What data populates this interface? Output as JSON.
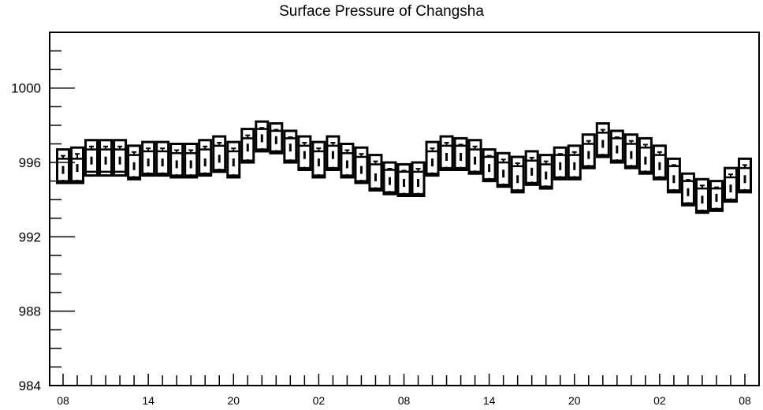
{
  "chart_data": {
    "type": "box",
    "title": "Surface Pressure of Changsha",
    "xlabel": "",
    "ylabel": "",
    "ylim": [
      984,
      1003
    ],
    "y_ticks": [
      "984",
      "988",
      "992",
      "996",
      "1000"
    ],
    "x_ticks": [
      "08",
      "14",
      "20",
      "02",
      "08",
      "14",
      "20",
      "02",
      "08"
    ],
    "grid": false,
    "boxes": [
      {
        "x": 0,
        "low": 994.9,
        "q1": 995.0,
        "median": 995.6,
        "q3": 996.2,
        "high": 996.7
      },
      {
        "x": 1,
        "low": 994.9,
        "q1": 995.0,
        "median": 995.7,
        "q3": 996.2,
        "high": 996.8
      },
      {
        "x": 2,
        "low": 995.3,
        "q1": 995.5,
        "median": 996.1,
        "q3": 996.7,
        "high": 997.2
      },
      {
        "x": 3,
        "low": 995.3,
        "q1": 995.5,
        "median": 996.1,
        "q3": 996.7,
        "high": 997.2
      },
      {
        "x": 4,
        "low": 995.3,
        "q1": 995.5,
        "median": 996.1,
        "q3": 996.7,
        "high": 997.2
      },
      {
        "x": 5,
        "low": 995.1,
        "q1": 995.2,
        "median": 995.8,
        "q3": 996.4,
        "high": 996.9
      },
      {
        "x": 6,
        "low": 995.3,
        "q1": 995.4,
        "median": 996.0,
        "q3": 996.6,
        "high": 997.1
      },
      {
        "x": 7,
        "low": 995.3,
        "q1": 995.4,
        "median": 996.0,
        "q3": 996.6,
        "high": 997.1
      },
      {
        "x": 8,
        "low": 995.2,
        "q1": 995.3,
        "median": 995.9,
        "q3": 996.5,
        "high": 997.0
      },
      {
        "x": 9,
        "low": 995.2,
        "q1": 995.3,
        "median": 995.9,
        "q3": 996.5,
        "high": 997.0
      },
      {
        "x": 10,
        "low": 995.3,
        "q1": 995.4,
        "median": 996.0,
        "q3": 996.7,
        "high": 997.2
      },
      {
        "x": 11,
        "low": 995.5,
        "q1": 995.6,
        "median": 996.2,
        "q3": 996.9,
        "high": 997.4
      },
      {
        "x": 12,
        "low": 995.2,
        "q1": 995.3,
        "median": 996.0,
        "q3": 996.6,
        "high": 997.1
      },
      {
        "x": 13,
        "low": 996.0,
        "q1": 996.1,
        "median": 996.8,
        "q3": 997.3,
        "high": 997.8
      },
      {
        "x": 14,
        "low": 996.6,
        "q1": 996.7,
        "median": 997.3,
        "q3": 997.8,
        "high": 998.2
      },
      {
        "x": 15,
        "low": 996.5,
        "q1": 996.6,
        "median": 997.2,
        "q3": 997.7,
        "high": 998.1
      },
      {
        "x": 16,
        "low": 996.0,
        "q1": 996.1,
        "median": 996.8,
        "q3": 997.3,
        "high": 997.7
      },
      {
        "x": 17,
        "low": 995.6,
        "q1": 995.7,
        "median": 996.4,
        "q3": 996.9,
        "high": 997.4
      },
      {
        "x": 18,
        "low": 995.2,
        "q1": 995.3,
        "median": 996.0,
        "q3": 996.6,
        "high": 997.1
      },
      {
        "x": 19,
        "low": 995.6,
        "q1": 995.7,
        "median": 996.4,
        "q3": 996.9,
        "high": 997.4
      },
      {
        "x": 20,
        "low": 995.2,
        "q1": 995.3,
        "median": 995.9,
        "q3": 996.5,
        "high": 997.0
      },
      {
        "x": 21,
        "low": 994.9,
        "q1": 995.0,
        "median": 995.6,
        "q3": 996.3,
        "high": 996.8
      },
      {
        "x": 22,
        "low": 994.5,
        "q1": 994.6,
        "median": 995.2,
        "q3": 995.9,
        "high": 996.4
      },
      {
        "x": 23,
        "low": 994.3,
        "q1": 994.4,
        "median": 995.0,
        "q3": 995.6,
        "high": 996.0
      },
      {
        "x": 24,
        "low": 994.2,
        "q1": 994.3,
        "median": 994.9,
        "q3": 995.5,
        "high": 995.9
      },
      {
        "x": 25,
        "low": 994.2,
        "q1": 994.3,
        "median": 994.9,
        "q3": 995.5,
        "high": 996.0
      },
      {
        "x": 26,
        "low": 995.3,
        "q1": 995.4,
        "median": 996.0,
        "q3": 996.6,
        "high": 997.1
      },
      {
        "x": 27,
        "low": 995.6,
        "q1": 995.7,
        "median": 996.3,
        "q3": 996.9,
        "high": 997.4
      },
      {
        "x": 28,
        "low": 995.6,
        "q1": 995.7,
        "median": 996.3,
        "q3": 996.9,
        "high": 997.3
      },
      {
        "x": 29,
        "low": 995.4,
        "q1": 995.5,
        "median": 996.1,
        "q3": 996.7,
        "high": 997.2
      },
      {
        "x": 30,
        "low": 995.0,
        "q1": 995.1,
        "median": 995.7,
        "q3": 996.3,
        "high": 996.7
      },
      {
        "x": 31,
        "low": 994.7,
        "q1": 994.8,
        "median": 995.4,
        "q3": 996.0,
        "high": 996.5
      },
      {
        "x": 32,
        "low": 994.4,
        "q1": 994.5,
        "median": 995.1,
        "q3": 995.8,
        "high": 996.3
      },
      {
        "x": 33,
        "low": 994.8,
        "q1": 994.9,
        "median": 995.5,
        "q3": 996.1,
        "high": 996.6
      },
      {
        "x": 34,
        "low": 994.6,
        "q1": 994.7,
        "median": 995.3,
        "q3": 995.9,
        "high": 996.4
      },
      {
        "x": 35,
        "low": 995.1,
        "q1": 995.2,
        "median": 995.8,
        "q3": 996.4,
        "high": 996.8
      },
      {
        "x": 36,
        "low": 995.1,
        "q1": 995.2,
        "median": 995.8,
        "q3": 996.4,
        "high": 996.9
      },
      {
        "x": 37,
        "low": 995.7,
        "q1": 995.8,
        "median": 996.4,
        "q3": 997.0,
        "high": 997.5
      },
      {
        "x": 38,
        "low": 996.3,
        "q1": 996.4,
        "median": 997.0,
        "q3": 997.6,
        "high": 998.1
      },
      {
        "x": 39,
        "low": 996.0,
        "q1": 996.1,
        "median": 996.7,
        "q3": 997.3,
        "high": 997.7
      },
      {
        "x": 40,
        "low": 995.7,
        "q1": 995.8,
        "median": 996.4,
        "q3": 997.0,
        "high": 997.5
      },
      {
        "x": 41,
        "low": 995.4,
        "q1": 995.5,
        "median": 996.1,
        "q3": 996.8,
        "high": 997.3
      },
      {
        "x": 42,
        "low": 995.1,
        "q1": 995.2,
        "median": 995.8,
        "q3": 996.4,
        "high": 996.9
      },
      {
        "x": 43,
        "low": 994.4,
        "q1": 994.5,
        "median": 995.1,
        "q3": 995.8,
        "high": 996.2
      },
      {
        "x": 44,
        "low": 993.7,
        "q1": 993.8,
        "median": 994.4,
        "q3": 995.0,
        "high": 995.4
      },
      {
        "x": 45,
        "low": 993.3,
        "q1": 993.4,
        "median": 994.0,
        "q3": 994.6,
        "high": 995.1
      },
      {
        "x": 46,
        "low": 993.4,
        "q1": 993.5,
        "median": 994.1,
        "q3": 994.6,
        "high": 995.0
      },
      {
        "x": 47,
        "low": 993.9,
        "q1": 994.0,
        "median": 994.6,
        "q3": 995.2,
        "high": 995.7
      },
      {
        "x": 48,
        "low": 994.4,
        "q1": 994.5,
        "median": 995.1,
        "q3": 995.7,
        "high": 996.2
      }
    ]
  }
}
